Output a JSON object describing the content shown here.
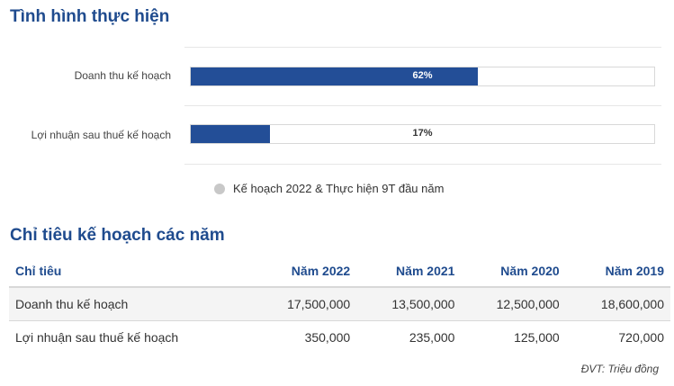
{
  "section1_title": "Tình hình thực hiện",
  "section2_title": "Chỉ tiêu kế hoạch các năm",
  "chart_data": {
    "type": "bar",
    "orientation": "horizontal",
    "categories": [
      "Doanh thu kế hoạch",
      "Lợi nhuận sau thuế kế hoạch"
    ],
    "series": [
      {
        "name": "Kế hoạch 2022 & Thực hiện 9T đầu năm",
        "values": [
          62,
          17
        ]
      }
    ],
    "data_labels": [
      "62%",
      "17%"
    ],
    "ylim": [
      0,
      100
    ],
    "bar_color": "#234e97",
    "legend_marker_color": "#c8c8c8",
    "legend_position": "bottom"
  },
  "table": {
    "headers": [
      "Chỉ tiêu",
      "Năm 2022",
      "Năm 2021",
      "Năm 2020",
      "Năm 2019"
    ],
    "rows": [
      [
        "Doanh thu kế hoạch",
        "17,500,000",
        "13,500,000",
        "12,500,000",
        "18,600,000"
      ],
      [
        "Lợi nhuận sau thuế kế hoạch",
        "350,000",
        "235,000",
        "125,000",
        "720,000"
      ]
    ]
  },
  "unit_note": "ĐVT: Triệu đồng",
  "colors": {
    "title": "#1f4b8e",
    "bar": "#234e97"
  }
}
